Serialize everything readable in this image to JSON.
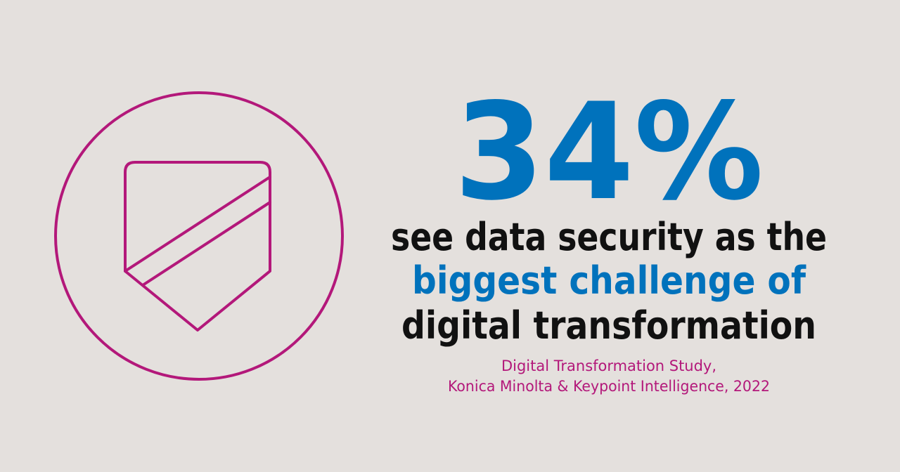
{
  "stat": "34%",
  "statement": [
    "see data security as the",
    "biggest challenge of",
    "digital transformation"
  ],
  "source": [
    "Digital Transformation Study,",
    "Konica Minolta & Keypoint Intelligence, 2022"
  ]
}
